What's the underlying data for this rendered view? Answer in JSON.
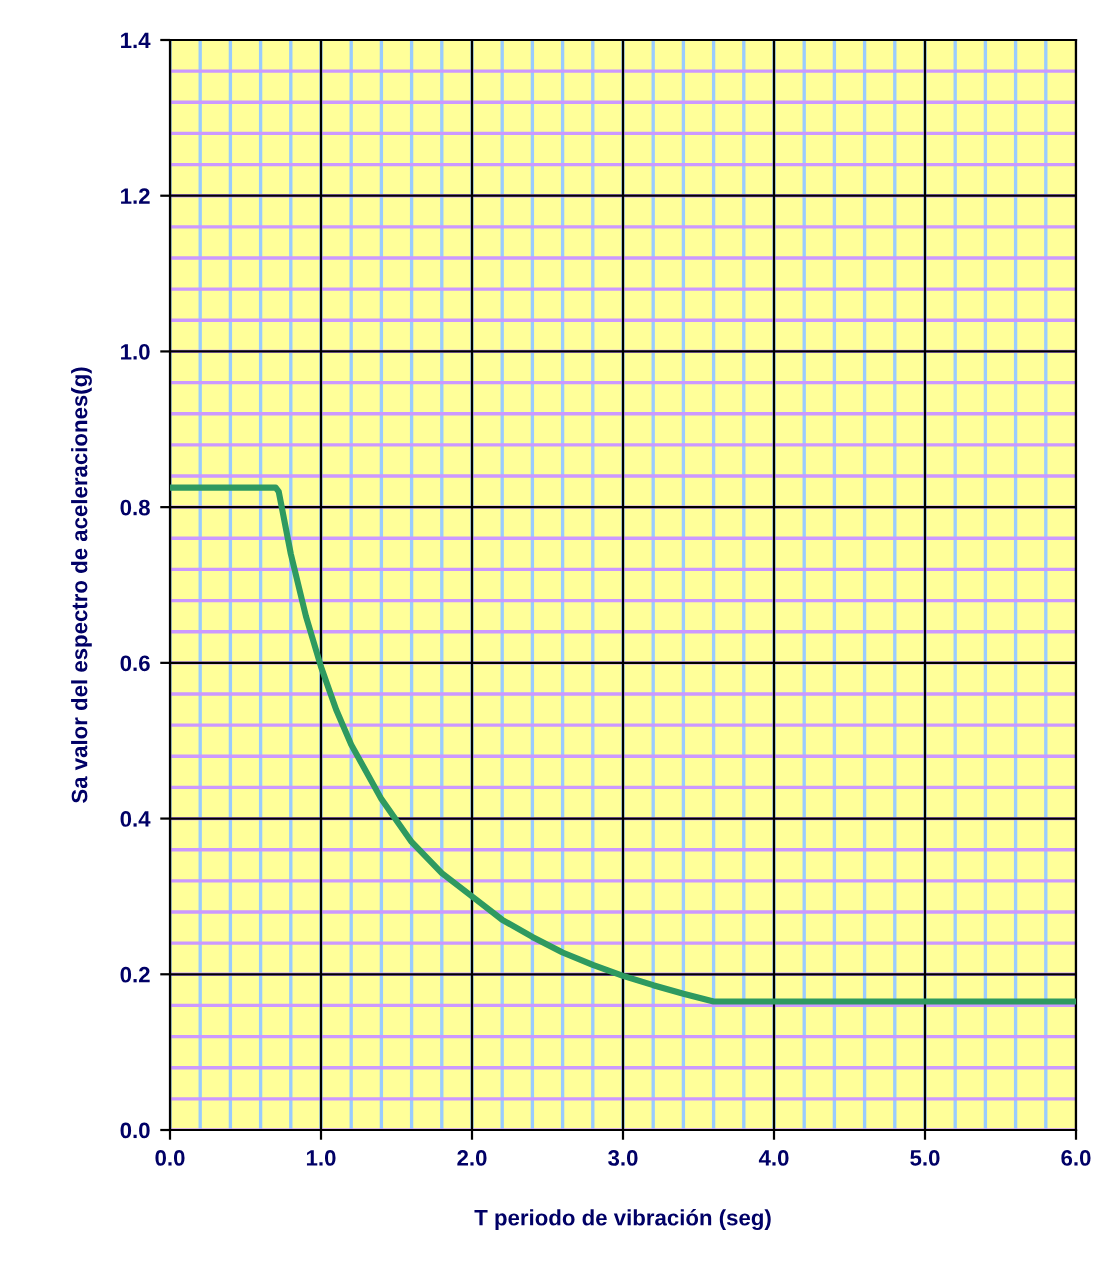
{
  "chart_data": {
    "type": "line",
    "xlabel": "T periodo de vibración (seg)",
    "ylabel": "Sa valor del espectro de aceleraciones(g)",
    "x": [
      0,
      0.7,
      0.72,
      0.8,
      0.9,
      1.0,
      1.1,
      1.2,
      1.4,
      1.6,
      1.8,
      2.0,
      2.2,
      2.4,
      2.6,
      2.8,
      3.0,
      3.2,
      3.4,
      3.6,
      6.0
    ],
    "series": [
      {
        "color": "#2e9a60",
        "values": [
          0.825,
          0.825,
          0.82,
          0.74,
          0.66,
          0.595,
          0.54,
          0.495,
          0.425,
          0.37,
          0.33,
          0.3,
          0.27,
          0.248,
          0.228,
          0.212,
          0.198,
          0.186,
          0.175,
          0.165,
          0.165
        ]
      }
    ],
    "xlim": [
      0,
      6
    ],
    "ylim": [
      0,
      1.4
    ],
    "xticks": [
      {
        "value": 0,
        "label": "0.0"
      },
      {
        "value": 1,
        "label": "1.0"
      },
      {
        "value": 2,
        "label": "2.0"
      },
      {
        "value": 3,
        "label": "3.0"
      },
      {
        "value": 4,
        "label": "4.0"
      },
      {
        "value": 5,
        "label": "5.0"
      },
      {
        "value": 6,
        "label": "6.0"
      }
    ],
    "yticks": [
      {
        "value": 0,
        "label": "0.0"
      },
      {
        "value": 0.2,
        "label": "0.2"
      },
      {
        "value": 0.4,
        "label": "0.4"
      },
      {
        "value": 0.6,
        "label": "0.6"
      },
      {
        "value": 0.8,
        "label": "0.8"
      },
      {
        "value": 1.0,
        "label": "1.0"
      },
      {
        "value": 1.2,
        "label": "1.2"
      },
      {
        "value": 1.4,
        "label": "1.4"
      }
    ],
    "grid": true,
    "marker": "none",
    "line_style": "solid"
  }
}
